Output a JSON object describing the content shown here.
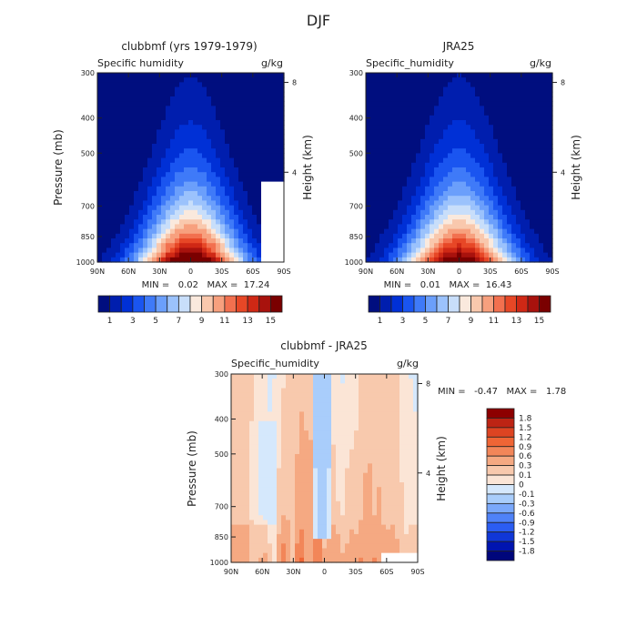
{
  "figure": {
    "title": "DJF"
  },
  "palettes": {
    "main": [
      "#000e7f",
      "#001eae",
      "#0030d6",
      "#1a55f0",
      "#3f7af8",
      "#6b9ffb",
      "#9bc2fc",
      "#c8defa",
      "#fae9dd",
      "#f9c8ad",
      "#f7a07e",
      "#f2704f",
      "#e74726",
      "#cf2815",
      "#a8120d",
      "#7a0000"
    ],
    "diff": [
      "#00067b",
      "#0014b0",
      "#1037d8",
      "#2b5df2",
      "#4f82f8",
      "#7aa8fb",
      "#a9cdfb",
      "#d5e8fc",
      "#fbe5d6",
      "#f8c9ad",
      "#f5a982",
      "#f28659",
      "#ef6535",
      "#dd4422",
      "#bd2414",
      "#8d0000"
    ]
  },
  "chart_data": [
    {
      "type": "heatmap",
      "title": "clubbmf (yrs 1979-1979)",
      "left_label": "Specific humidity",
      "right_label": "g/kg",
      "ylabel": "Pressure (mb)",
      "ylabel_right": "Height (km)",
      "x_ticks": [
        "90N",
        "60N",
        "30N",
        "0",
        "30S",
        "60S",
        "90S"
      ],
      "y_ticks": [
        "300",
        "400",
        "500",
        "700",
        "850",
        "1000"
      ],
      "y_ticks_right": [
        "8",
        "4"
      ],
      "stats_text": "MIN =   0.02   MAX =  17.24",
      "field": {
        "peak": 17.24,
        "min": 0.02,
        "center_lat": 0,
        "lat_width": 52,
        "top_pressure": 390,
        "missing_region": {
          "lat_from": 70,
          "lat_to": 90,
          "pressure_from": 600
        }
      },
      "colorbar_labels": [
        "1",
        "3",
        "5",
        "7",
        "9",
        "11",
        "13",
        "15"
      ],
      "color_levels": [
        1,
        2,
        3,
        4,
        5,
        6,
        7,
        8,
        9,
        10,
        11,
        12,
        13,
        14,
        15
      ]
    },
    {
      "type": "heatmap",
      "title": "JRA25",
      "left_label": "Specific_humidity",
      "right_label": "g/kg",
      "ylabel": "Pressure (mb)",
      "ylabel_right": "Height (km)",
      "x_ticks": [
        "90N",
        "60N",
        "30N",
        "0",
        "30S",
        "60S",
        "90S"
      ],
      "y_ticks": [
        "300",
        "400",
        "500",
        "700",
        "850",
        "1000"
      ],
      "y_ticks_right": [
        "8",
        "4"
      ],
      "stats_text": "MIN =   0.01   MAX =  16.43",
      "field": {
        "peak": 16.43,
        "min": 0.01,
        "center_lat": 0,
        "lat_width": 54,
        "top_pressure": 380
      },
      "colorbar_labels": [
        "1",
        "3",
        "5",
        "7",
        "9",
        "11",
        "13",
        "15"
      ],
      "color_levels": [
        1,
        2,
        3,
        4,
        5,
        6,
        7,
        8,
        9,
        10,
        11,
        12,
        13,
        14,
        15
      ]
    },
    {
      "type": "heatmap",
      "title": "clubbmf - JRA25",
      "left_label": "Specific_humidity",
      "right_label": "g/kg",
      "ylabel": "Pressure (mb)",
      "ylabel_right": "Height (km)",
      "x_ticks": [
        "90N",
        "60N",
        "30N",
        "0",
        "30S",
        "60S",
        "90S"
      ],
      "y_ticks": [
        "300",
        "400",
        "500",
        "700",
        "850",
        "1000"
      ],
      "y_ticks_right": [
        "8",
        "4"
      ],
      "stats_text": "MIN =   -0.47   MAX =   1.78",
      "field": {
        "min": -0.47,
        "max": 1.78,
        "missing_region": {
          "lat_from": 55,
          "lat_to": 90,
          "pressure_from": 930
        }
      },
      "colorbar_labels": [
        "1.8",
        "1.5",
        "1.2",
        "0.9",
        "0.6",
        "0.3",
        "0.1",
        "0",
        "-0.1",
        "-0.3",
        "-0.6",
        "-0.9",
        "-1.2",
        "-1.5",
        "-1.8"
      ],
      "color_levels": [
        -1.8,
        -1.5,
        -1.2,
        -0.9,
        -0.6,
        -0.3,
        -0.1,
        0,
        0.1,
        0.3,
        0.6,
        0.9,
        1.2,
        1.5,
        1.8
      ]
    }
  ]
}
